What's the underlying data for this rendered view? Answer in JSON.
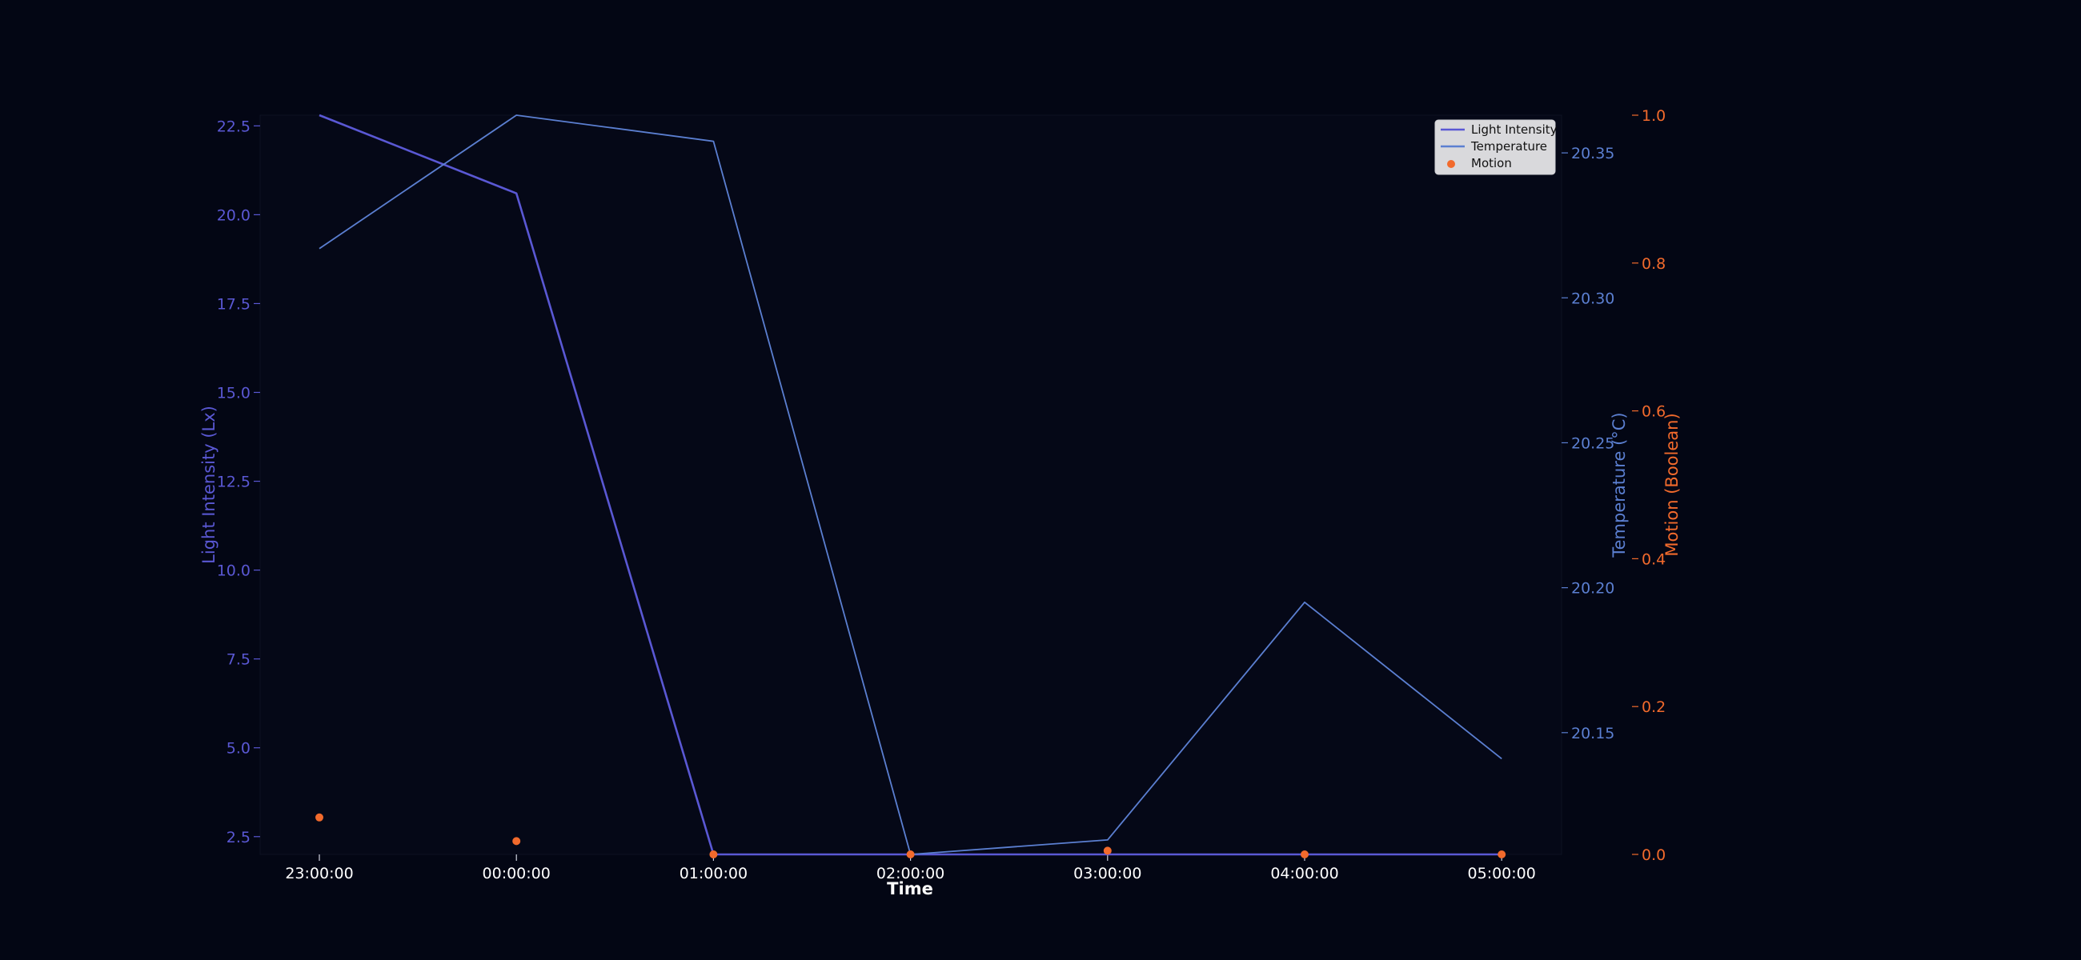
{
  "chart_data": {
    "type": "line",
    "x_label": "Time",
    "x_categories": [
      "23:00:00",
      "00:00:00",
      "01:00:00",
      "02:00:00",
      "03:00:00",
      "04:00:00",
      "05:00:00"
    ],
    "series": [
      {
        "name": "Light Intensity",
        "kind": "line",
        "axis": "left",
        "color": "#5a58d4",
        "values": [
          22.8,
          20.6,
          2.0,
          2.0,
          2.0,
          2.0,
          2.0
        ]
      },
      {
        "name": "Temperature",
        "kind": "line",
        "axis": "right",
        "color": "#5b7fd1",
        "values": [
          20.317,
          20.363,
          20.354,
          20.108,
          20.113,
          20.195,
          20.141
        ]
      },
      {
        "name": "Motion",
        "kind": "scatter",
        "axis": "right2",
        "color": "#f26a2c",
        "values": [
          0.05,
          0.018,
          0.0,
          0.0,
          0.005,
          0.0,
          0.0
        ]
      }
    ],
    "axes": {
      "left": {
        "label": "Light Intensity (Lx)",
        "color": "#5a58d4",
        "range": [
          2.0,
          22.8
        ],
        "ticks": [
          2.5,
          5.0,
          7.5,
          10.0,
          12.5,
          15.0,
          17.5,
          20.0,
          22.5
        ],
        "tick_labels": [
          "2.5",
          "5.0",
          "7.5",
          "10.0",
          "12.5",
          "15.0",
          "17.5",
          "20.0",
          "22.5"
        ]
      },
      "right": {
        "label": "Temperature (°C)",
        "color": "#5b7fd1",
        "range": [
          20.108,
          20.363
        ],
        "ticks": [
          20.15,
          20.2,
          20.25,
          20.3,
          20.35
        ],
        "tick_labels": [
          "20.15",
          "20.20",
          "20.25",
          "20.30",
          "20.35"
        ]
      },
      "right2": {
        "label": "Motion (Boolean)",
        "color": "#f26a2c",
        "range": [
          0.0,
          1.0
        ],
        "ticks": [
          0.0,
          0.2,
          0.4,
          0.6,
          0.8,
          1.0
        ],
        "tick_labels": [
          "0.0",
          "0.2",
          "0.4",
          "0.6",
          "0.8",
          "1.0"
        ]
      }
    },
    "legend": {
      "position": "top-right",
      "entries": [
        "Light Intensity",
        "Temperature",
        "Motion"
      ]
    },
    "grid": false
  }
}
